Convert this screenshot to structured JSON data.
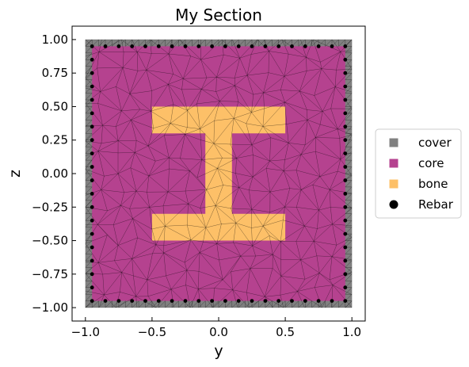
{
  "chart_data": {
    "type": "mesh",
    "title": "My Section",
    "xlabel": "y",
    "ylabel": "z",
    "xlim": [
      -1.1,
      1.1
    ],
    "ylim": [
      -1.1,
      1.1
    ],
    "xticks": [
      -1.0,
      -0.5,
      0.0,
      0.5,
      1.0
    ],
    "xtick_labels": [
      "−1.0",
      "−0.5",
      "0.0",
      "0.5",
      "1.0"
    ],
    "yticks": [
      1.0,
      0.75,
      0.5,
      0.25,
      0.0,
      -0.25,
      -0.5,
      -0.75,
      -1.0
    ],
    "ytick_labels": [
      "1.00",
      "0.75",
      "0.50",
      "0.25",
      "0.00",
      "−0.25",
      "−0.50",
      "−0.75",
      "−1.00"
    ],
    "grid": false,
    "legend_position": "right",
    "regions": [
      {
        "name": "cover",
        "color": "#808080",
        "polygon": [
          [
            -1,
            -1
          ],
          [
            1,
            -1
          ],
          [
            1,
            1
          ],
          [
            -1,
            1
          ]
        ]
      },
      {
        "name": "core",
        "color": "#b5428f",
        "polygon": [
          [
            -0.95,
            -0.95
          ],
          [
            0.95,
            -0.95
          ],
          [
            0.95,
            0.95
          ],
          [
            -0.95,
            0.95
          ]
        ]
      },
      {
        "name": "bone",
        "color": "#fdc068",
        "polygon": [
          [
            -0.5,
            -0.5
          ],
          [
            0.5,
            -0.5
          ],
          [
            0.5,
            -0.3
          ],
          [
            0.1,
            -0.3
          ],
          [
            0.1,
            0.3
          ],
          [
            0.5,
            0.3
          ],
          [
            0.5,
            0.5
          ],
          [
            -0.5,
            0.5
          ],
          [
            -0.5,
            0.3
          ],
          [
            -0.1,
            0.3
          ],
          [
            -0.1,
            -0.3
          ],
          [
            -0.5,
            -0.3
          ]
        ]
      }
    ],
    "rebar": {
      "name": "Rebar",
      "color": "#000000",
      "corner": 0.95,
      "top_bottom_y": [
        -0.95,
        -0.85,
        -0.75,
        -0.65,
        -0.55,
        -0.45,
        -0.35,
        -0.25,
        -0.15,
        -0.05,
        0.05,
        0.15,
        0.25,
        0.35,
        0.45,
        0.55,
        0.65,
        0.75,
        0.85,
        0.95
      ],
      "left_right_z": [
        -0.85,
        -0.75,
        -0.65,
        -0.55,
        -0.45,
        -0.35,
        -0.25,
        -0.15,
        -0.05,
        0.05,
        0.15,
        0.25,
        0.35,
        0.45,
        0.55,
        0.65,
        0.75,
        0.85
      ]
    },
    "legend": [
      {
        "label": "cover",
        "color": "#808080",
        "marker": "square"
      },
      {
        "label": "core",
        "color": "#b5428f",
        "marker": "square"
      },
      {
        "label": "bone",
        "color": "#fdc068",
        "marker": "square"
      },
      {
        "label": "Rebar",
        "color": "#000000",
        "marker": "circle"
      }
    ]
  }
}
